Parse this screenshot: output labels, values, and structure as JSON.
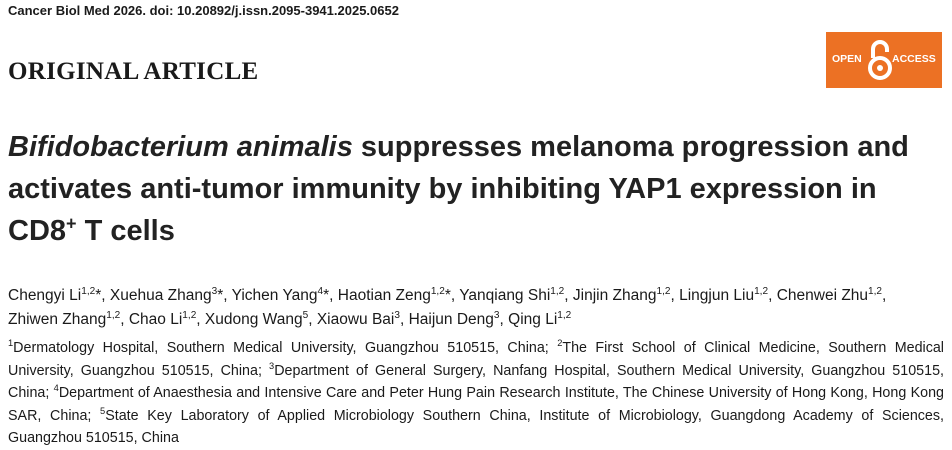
{
  "header": {
    "citation": "Cancer Biol Med 2026. doi: 10.20892/j.issn.2095-3941.2025.0652",
    "section": "ORIGINAL ARTICLE",
    "badge": {
      "left": "OPEN",
      "right": "ACCESS"
    }
  },
  "title": {
    "italic": "Bifidobacterium animalis",
    "main": " suppresses melanoma progression and activates anti-tumor immunity by inhibiting YAP1 expression in CD8",
    "sup": "+",
    "end": " T cells"
  },
  "authors": [
    {
      "name": "Chengyi Li",
      "sup": "1,2",
      "suffix": "*,"
    },
    {
      "name": "Xuehua Zhang",
      "sup": "3",
      "suffix": "*,"
    },
    {
      "name": "Yichen Yang",
      "sup": "4",
      "suffix": "*,"
    },
    {
      "name": "Haotian Zeng",
      "sup": "1,2",
      "suffix": "*,"
    },
    {
      "name": "Yanqiang Shi",
      "sup": "1,2",
      "suffix": ","
    },
    {
      "name": "Jinjin Zhang",
      "sup": "1,2",
      "suffix": ","
    },
    {
      "name": "Lingjun Liu",
      "sup": "1,2",
      "suffix": ","
    },
    {
      "name": "Chenwei Zhu",
      "sup": "1,2",
      "suffix": ","
    },
    {
      "name": "Zhiwen Zhang",
      "sup": "1,2",
      "suffix": ","
    },
    {
      "name": "Chao Li",
      "sup": "1,2",
      "suffix": ","
    },
    {
      "name": "Xudong Wang",
      "sup": "5",
      "suffix": ","
    },
    {
      "name": "Xiaowu Bai",
      "sup": "3",
      "suffix": ","
    },
    {
      "name": "Haijun Deng",
      "sup": "3",
      "suffix": ","
    },
    {
      "name": "Qing Li",
      "sup": "1,2"
    }
  ],
  "affiliations": [
    {
      "sup": "1",
      "text": "Dermatology Hospital, Southern Medical University, Guangzhou 510515, China;"
    },
    {
      "sup": "2",
      "text": "The First School of Clinical Medicine, Southern Medical University, Guangzhou 510515, China;"
    },
    {
      "sup": "3",
      "text": "Department of General Surgery, Nanfang Hospital, Southern Medical University, Guangzhou 510515, China;"
    },
    {
      "sup": "4",
      "text": "Department of Anaesthesia and Intensive Care and Peter Hung Pain Research Institute, The Chinese University of Hong Kong, Hong Kong SAR, China;"
    },
    {
      "sup": "5",
      "text": "State Key Laboratory of Applied Microbiology Southern China, Institute of Microbiology, Guangdong Academy of Sciences, Guangzhou 510515, China"
    }
  ]
}
